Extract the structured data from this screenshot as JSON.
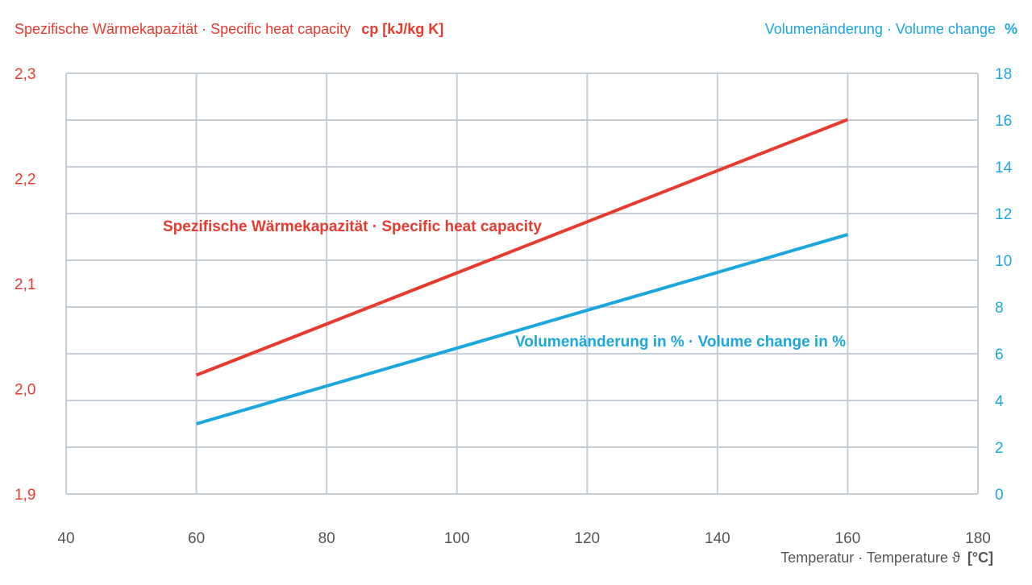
{
  "chart_data": {
    "type": "line",
    "x_axis": {
      "title": "Temperatur · Temperature ϑ",
      "unit": "[°C]",
      "range": [
        40,
        180
      ],
      "ticks": [
        "40",
        "60",
        "80",
        "100",
        "120",
        "140",
        "160",
        "180"
      ]
    },
    "y_left": {
      "title": "Spezifische Wärmekapazität · Specific heat capacity",
      "unit": "cp [kJ/kg K]",
      "range": [
        1.9,
        2.3
      ],
      "ticks": [
        "1,9",
        "2,0",
        "2,1",
        "2,2",
        "2,3"
      ]
    },
    "y_right": {
      "title": "Volumenänderung · Volume change",
      "unit": "%",
      "range": [
        0,
        18
      ],
      "ticks": [
        "0",
        "2",
        "4",
        "6",
        "8",
        "10",
        "12",
        "14",
        "16",
        "18"
      ]
    },
    "grid": true,
    "series": [
      {
        "name": "Spezifische Wärmekapazität · Specific heat capacity",
        "axis": "left",
        "color": "#e63b2e",
        "x": [
          60,
          160
        ],
        "y": [
          2.013,
          2.256
        ]
      },
      {
        "name": "Volumenänderung in % · Volume change in %",
        "axis": "right",
        "color": "#1ba6dc",
        "x": [
          60,
          160
        ],
        "y": [
          3.0,
          11.1
        ]
      }
    ]
  },
  "colors": {
    "left_axis": "#e63b2e",
    "right_axis": "#1ba6dc",
    "x_axis": "#555555",
    "grid": "#c5ccd3"
  }
}
